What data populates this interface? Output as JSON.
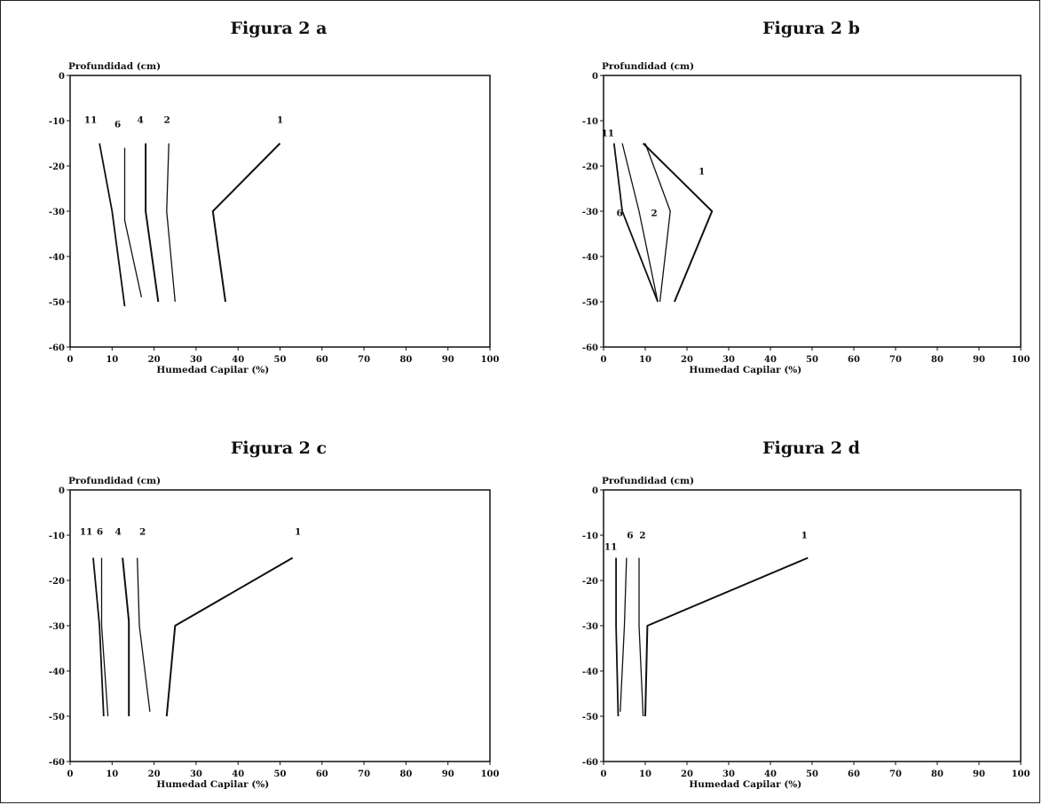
{
  "chart_data": [
    {
      "type": "line",
      "title": "Figura 2 a",
      "xlabel": "Humedad Capilar (%)",
      "ylabel": "Profundidad (cm)",
      "xlim": [
        0,
        100
      ],
      "ylim": [
        -60,
        0
      ],
      "xticks": [
        0,
        10,
        20,
        30,
        40,
        50,
        60,
        70,
        80,
        90,
        100
      ],
      "yticks": [
        0,
        -10,
        -20,
        -30,
        -40,
        -50,
        -60
      ],
      "series": [
        {
          "name": "1",
          "points": [
            [
              50,
              -15
            ],
            [
              34,
              -30
            ],
            [
              37,
              -50
            ]
          ]
        },
        {
          "name": "2",
          "points": [
            [
              23.5,
              -15
            ],
            [
              23,
              -30
            ],
            [
              25,
              -50
            ]
          ]
        },
        {
          "name": "4",
          "points": [
            [
              18,
              -15
            ],
            [
              18,
              -30
            ],
            [
              21,
              -50
            ]
          ]
        },
        {
          "name": "6",
          "points": [
            [
              13,
              -16
            ],
            [
              13,
              -32
            ],
            [
              17,
              -49
            ]
          ]
        },
        {
          "name": "11",
          "points": [
            [
              7,
              -15
            ],
            [
              10,
              -30
            ],
            [
              13,
              -51
            ]
          ]
        }
      ]
    },
    {
      "type": "line",
      "title": "Figura 2 b",
      "xlabel": "Humedad Capilar (%)",
      "ylabel": "Profundidad (cm)",
      "xlim": [
        0,
        100
      ],
      "ylim": [
        -60,
        0
      ],
      "xticks": [
        0,
        10,
        20,
        30,
        40,
        50,
        60,
        70,
        80,
        90,
        100
      ],
      "yticks": [
        0,
        -10,
        -20,
        -30,
        -40,
        -50,
        -60
      ],
      "series": [
        {
          "name": "1",
          "points": [
            [
              9.5,
              -15
            ],
            [
              26,
              -30
            ],
            [
              17,
              -50
            ]
          ]
        },
        {
          "name": "2",
          "points": [
            [
              10,
              -15
            ],
            [
              16,
              -30
            ],
            [
              13.5,
              -50
            ]
          ]
        },
        {
          "name": "6",
          "points": [
            [
              4.5,
              -15
            ],
            [
              8.5,
              -30
            ],
            [
              13,
              -50
            ]
          ]
        },
        {
          "name": "11",
          "points": [
            [
              2.5,
              -15
            ],
            [
              4.5,
              -30
            ],
            [
              13,
              -50
            ]
          ]
        }
      ]
    },
    {
      "type": "line",
      "title": "Figura 2 c",
      "xlabel": "Humedad Capilar (%)",
      "ylabel": "Profundidad (cm)",
      "xlim": [
        0,
        100
      ],
      "ylim": [
        -60,
        0
      ],
      "xticks": [
        0,
        10,
        20,
        30,
        40,
        50,
        60,
        70,
        80,
        90,
        100
      ],
      "yticks": [
        0,
        -10,
        -20,
        -30,
        -40,
        -50,
        -60
      ],
      "series": [
        {
          "name": "1",
          "points": [
            [
              53,
              -15
            ],
            [
              25,
              -30
            ],
            [
              23,
              -50
            ]
          ]
        },
        {
          "name": "2",
          "points": [
            [
              16,
              -15
            ],
            [
              16.5,
              -30
            ],
            [
              19,
              -49
            ]
          ]
        },
        {
          "name": "4",
          "points": [
            [
              12.5,
              -15
            ],
            [
              14,
              -29
            ],
            [
              14,
              -50
            ]
          ]
        },
        {
          "name": "6",
          "points": [
            [
              7.5,
              -15
            ],
            [
              7.5,
              -30
            ],
            [
              9,
              -50
            ]
          ]
        },
        {
          "name": "11",
          "points": [
            [
              5.5,
              -15
            ],
            [
              7,
              -30
            ],
            [
              8,
              -50
            ]
          ]
        }
      ]
    },
    {
      "type": "line",
      "title": "Figura 2 d",
      "xlabel": "Humedad Capilar (%)",
      "ylabel": "Profundidad (cm)",
      "xlim": [
        0,
        100
      ],
      "ylim": [
        -60,
        0
      ],
      "xticks": [
        0,
        10,
        20,
        30,
        40,
        50,
        60,
        70,
        80,
        90,
        100
      ],
      "yticks": [
        0,
        -10,
        -20,
        -30,
        -40,
        -50,
        -60
      ],
      "series": [
        {
          "name": "1",
          "points": [
            [
              49,
              -15
            ],
            [
              10.5,
              -30
            ],
            [
              10,
              -50
            ]
          ]
        },
        {
          "name": "2",
          "points": [
            [
              8.5,
              -15
            ],
            [
              8.5,
              -30
            ],
            [
              9.5,
              -50
            ]
          ]
        },
        {
          "name": "6",
          "points": [
            [
              5.5,
              -15
            ],
            [
              5,
              -30
            ],
            [
              4,
              -49
            ]
          ]
        },
        {
          "name": "11",
          "points": [
            [
              3,
              -15
            ],
            [
              3,
              -30
            ],
            [
              3.5,
              -50
            ]
          ]
        }
      ]
    }
  ]
}
